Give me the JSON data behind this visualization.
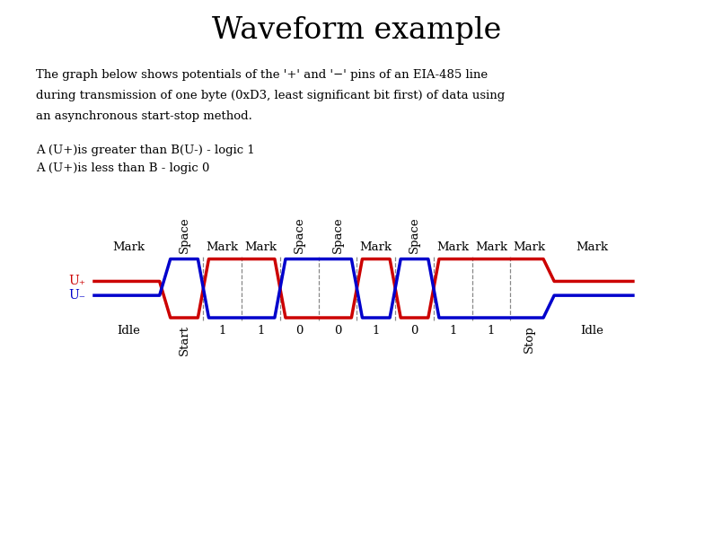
{
  "title": "Waveform example",
  "title_fontsize": 24,
  "desc1": "The graph below shows potentials of the '+' and '−' pins of an EIA-485 line",
  "desc2": "during transmission of one byte (0xD3, least significant bit first) of data using",
  "desc3": "an asynchronous start-stop method.",
  "leg1": "A (U+)is greater than B(U-) - logic 1",
  "leg2": "A (U+)is less than B - logic 0",
  "color_red": "#cc0000",
  "color_blue": "#0000cc",
  "color_dash": "#888888",
  "bg": "#ffffff",
  "all_bits": [
    0,
    1,
    1,
    0,
    0,
    1,
    0,
    1,
    1,
    1
  ],
  "bit_labels": [
    "Start",
    "1",
    "1",
    "0",
    "0",
    "1",
    "0",
    "1",
    "1",
    "Stop"
  ],
  "idle_plus": 0.62,
  "idle_minus": 0.38,
  "high": 1.0,
  "low": 0.0,
  "slope": 0.12
}
